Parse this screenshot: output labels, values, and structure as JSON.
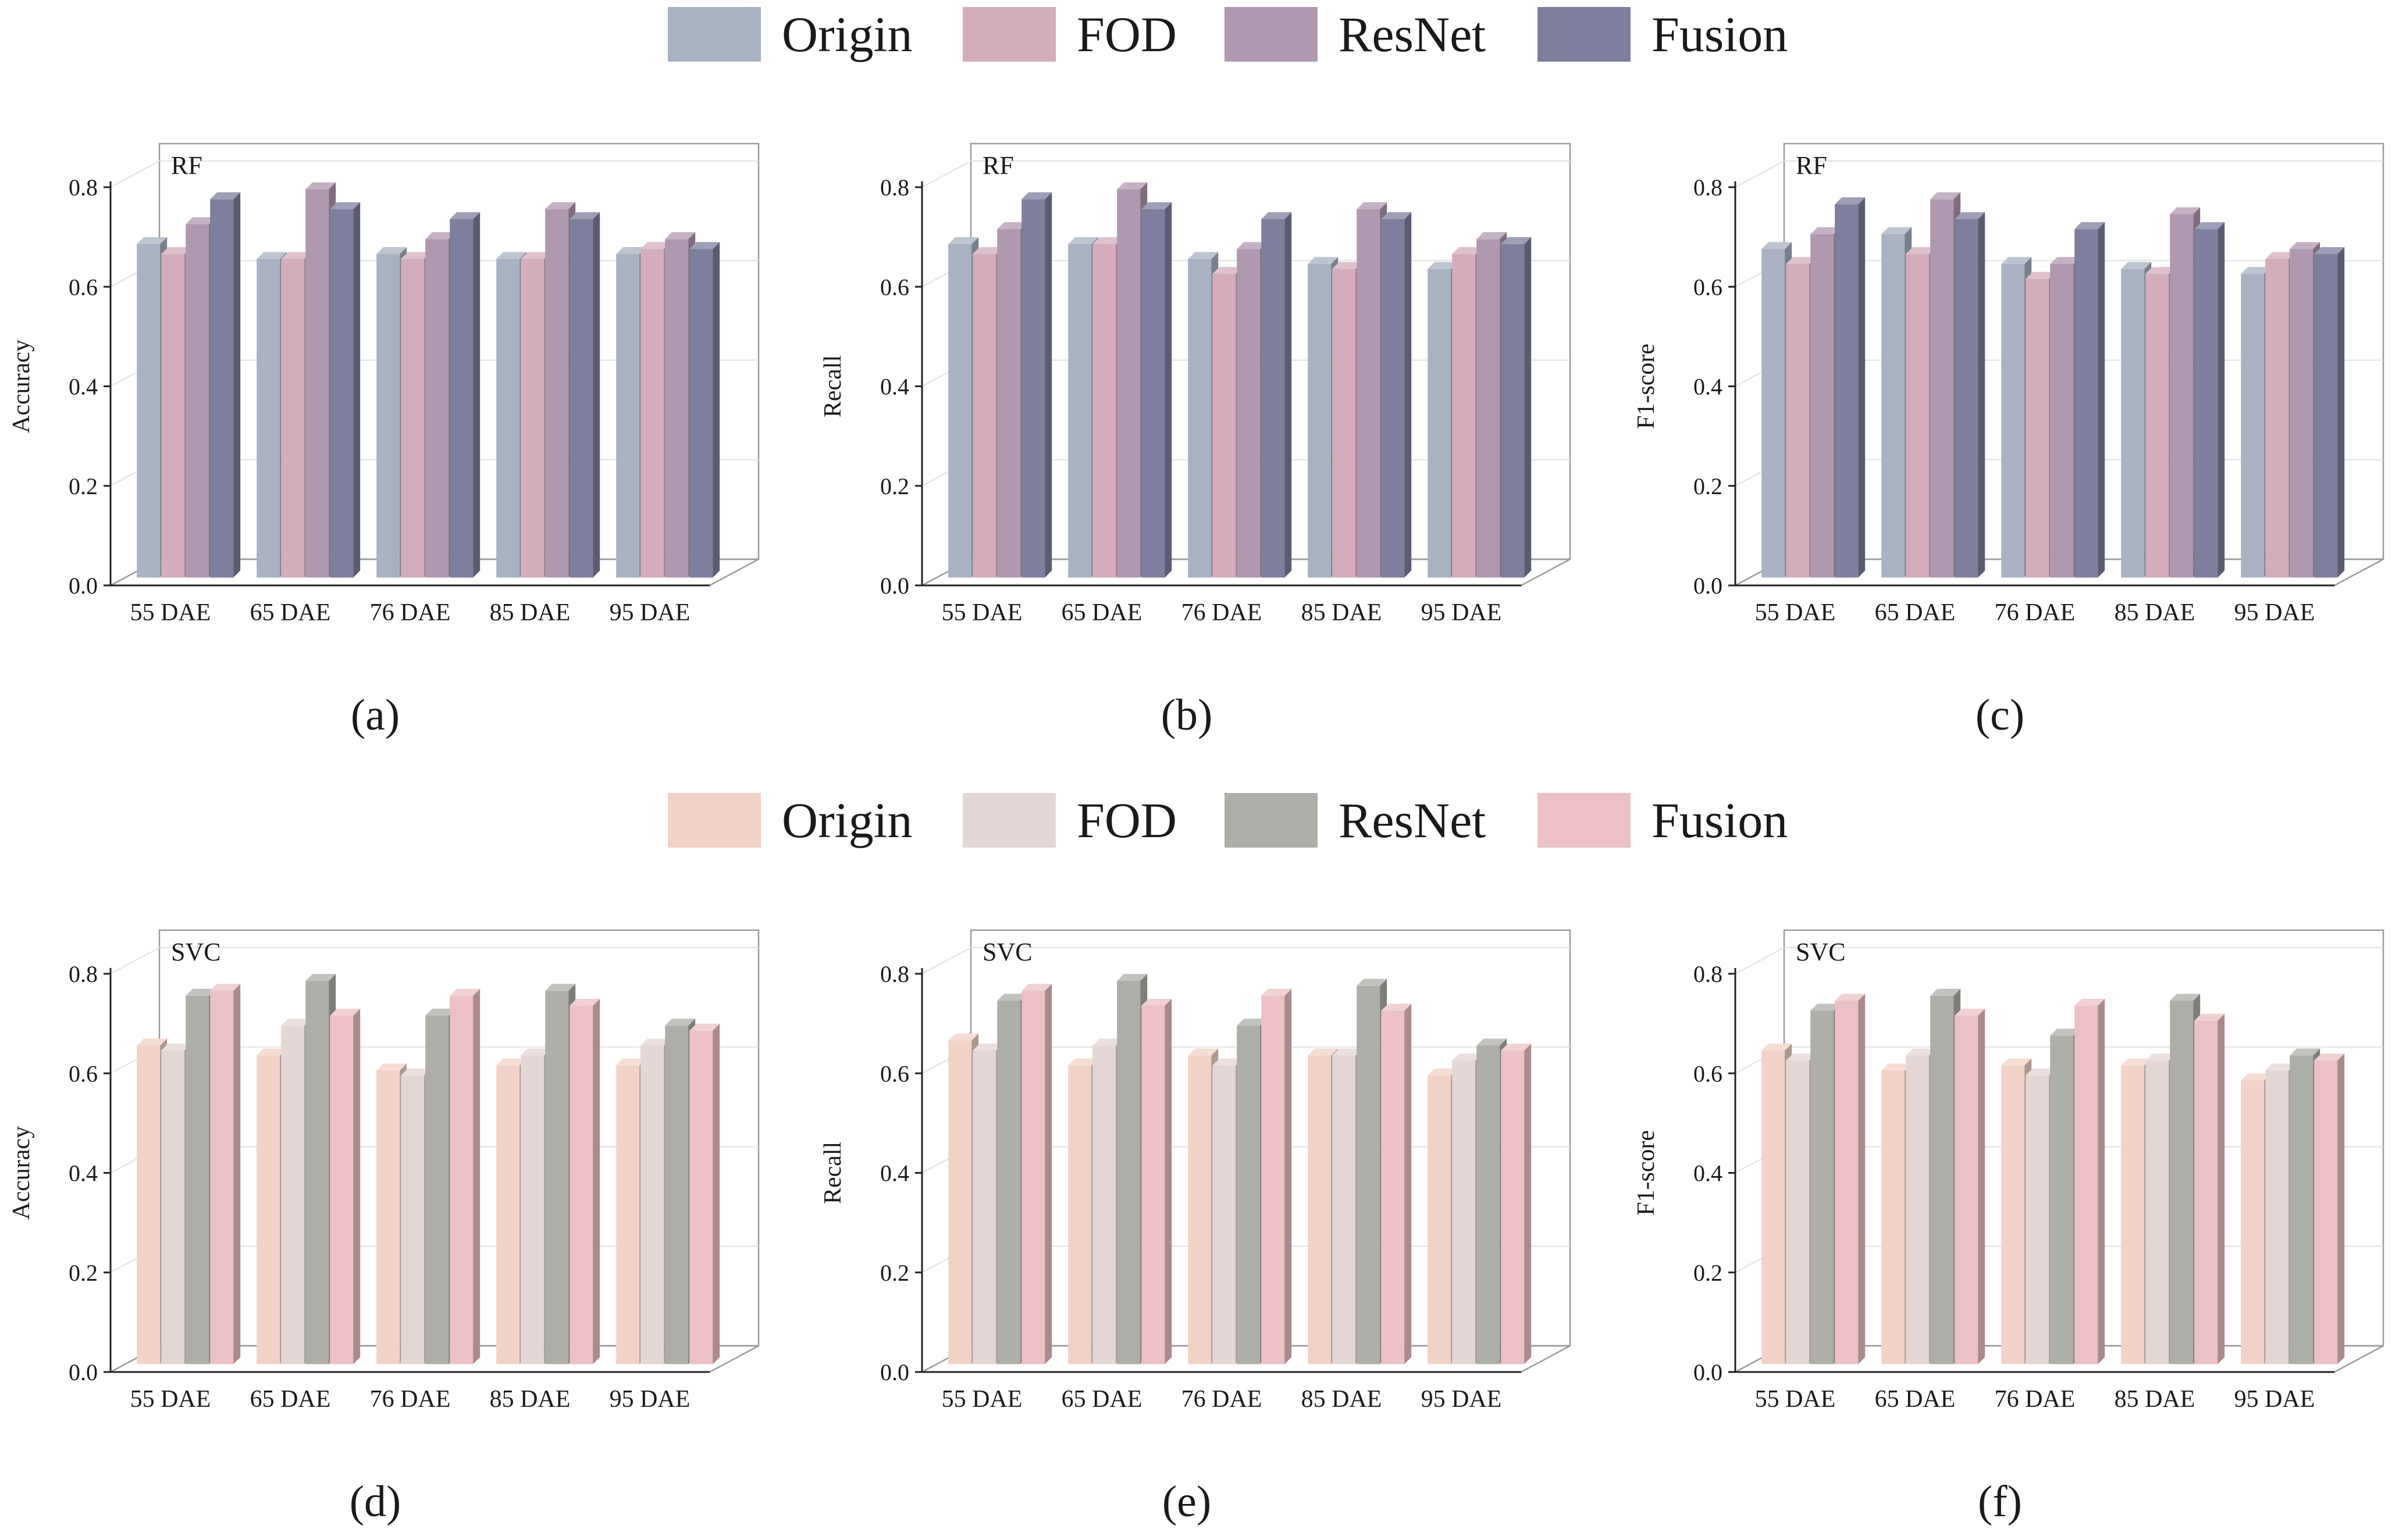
{
  "legends": [
    {
      "items": [
        {
          "label": "Origin",
          "color": "#a8b2c2"
        },
        {
          "label": "FOD",
          "color": "#d4acbc"
        },
        {
          "label": "ResNet",
          "color": "#b098b0"
        },
        {
          "label": "Fusion",
          "color": "#7e7e9e"
        }
      ]
    },
    {
      "items": [
        {
          "label": "Origin",
          "color": "#f2d2c6"
        },
        {
          "label": "FOD",
          "color": "#e4d6d4"
        },
        {
          "label": "ResNet",
          "color": "#aeaea8"
        },
        {
          "label": "Fusion",
          "color": "#ecc0c4"
        }
      ]
    }
  ],
  "chart_data": [
    {
      "type": "bar",
      "panel": "(a)",
      "model": "RF",
      "ylabel": "Accuracy",
      "ylim": [
        0,
        0.8
      ],
      "yticks": [
        "0.0",
        "0.2",
        "0.4",
        "0.6",
        "0.8"
      ],
      "categories": [
        "55 DAE",
        "65 DAE",
        "76 DAE",
        "85 DAE",
        "95 DAE"
      ],
      "series": [
        {
          "name": "Origin",
          "values": [
            0.67,
            0.64,
            0.65,
            0.64,
            0.65
          ]
        },
        {
          "name": "FOD",
          "values": [
            0.65,
            0.64,
            0.64,
            0.64,
            0.66
          ]
        },
        {
          "name": "ResNet",
          "values": [
            0.71,
            0.78,
            0.68,
            0.74,
            0.68
          ]
        },
        {
          "name": "Fusion",
          "values": [
            0.76,
            0.74,
            0.72,
            0.72,
            0.66
          ]
        }
      ]
    },
    {
      "type": "bar",
      "panel": "(b)",
      "model": "RF",
      "ylabel": "Recall",
      "ylim": [
        0,
        0.8
      ],
      "yticks": [
        "0.0",
        "0.2",
        "0.4",
        "0.6",
        "0.8"
      ],
      "categories": [
        "55 DAE",
        "65 DAE",
        "76 DAE",
        "85 DAE",
        "95 DAE"
      ],
      "series": [
        {
          "name": "Origin",
          "values": [
            0.67,
            0.67,
            0.64,
            0.63,
            0.62
          ]
        },
        {
          "name": "FOD",
          "values": [
            0.65,
            0.67,
            0.61,
            0.62,
            0.65
          ]
        },
        {
          "name": "ResNet",
          "values": [
            0.7,
            0.78,
            0.66,
            0.74,
            0.68
          ]
        },
        {
          "name": "Fusion",
          "values": [
            0.76,
            0.74,
            0.72,
            0.72,
            0.67
          ]
        }
      ]
    },
    {
      "type": "bar",
      "panel": "(c)",
      "model": "RF",
      "ylabel": "F1-score",
      "ylim": [
        0,
        0.8
      ],
      "yticks": [
        "0.0",
        "0.2",
        "0.4",
        "0.6",
        "0.8"
      ],
      "categories": [
        "55 DAE",
        "65 DAE",
        "76 DAE",
        "85 DAE",
        "95 DAE"
      ],
      "series": [
        {
          "name": "Origin",
          "values": [
            0.66,
            0.69,
            0.63,
            0.62,
            0.61
          ]
        },
        {
          "name": "FOD",
          "values": [
            0.63,
            0.65,
            0.6,
            0.61,
            0.64
          ]
        },
        {
          "name": "ResNet",
          "values": [
            0.69,
            0.76,
            0.63,
            0.73,
            0.66
          ]
        },
        {
          "name": "Fusion",
          "values": [
            0.75,
            0.72,
            0.7,
            0.7,
            0.65
          ]
        }
      ]
    },
    {
      "type": "bar",
      "panel": "(d)",
      "model": "SVC",
      "ylabel": "Accuracy",
      "ylim": [
        0,
        0.8
      ],
      "yticks": [
        "0.0",
        "0.2",
        "0.4",
        "0.6",
        "0.8"
      ],
      "categories": [
        "55 DAE",
        "65 DAE",
        "76 DAE",
        "85 DAE",
        "95 DAE"
      ],
      "series": [
        {
          "name": "Origin",
          "values": [
            0.64,
            0.62,
            0.59,
            0.6,
            0.6
          ]
        },
        {
          "name": "FOD",
          "values": [
            0.63,
            0.68,
            0.58,
            0.62,
            0.64
          ]
        },
        {
          "name": "ResNet",
          "values": [
            0.74,
            0.77,
            0.7,
            0.75,
            0.68
          ]
        },
        {
          "name": "Fusion",
          "values": [
            0.75,
            0.7,
            0.74,
            0.72,
            0.67
          ]
        }
      ]
    },
    {
      "type": "bar",
      "panel": "(e)",
      "model": "SVC",
      "ylabel": "Recall",
      "ylim": [
        0,
        0.8
      ],
      "yticks": [
        "0.0",
        "0.2",
        "0.4",
        "0.6",
        "0.8"
      ],
      "categories": [
        "55 DAE",
        "65 DAE",
        "76 DAE",
        "85 DAE",
        "95 DAE"
      ],
      "series": [
        {
          "name": "Origin",
          "values": [
            0.65,
            0.6,
            0.62,
            0.62,
            0.58
          ]
        },
        {
          "name": "FOD",
          "values": [
            0.63,
            0.64,
            0.6,
            0.62,
            0.61
          ]
        },
        {
          "name": "ResNet",
          "values": [
            0.73,
            0.77,
            0.68,
            0.76,
            0.64
          ]
        },
        {
          "name": "Fusion",
          "values": [
            0.75,
            0.72,
            0.74,
            0.71,
            0.63
          ]
        }
      ]
    },
    {
      "type": "bar",
      "panel": "(f)",
      "model": "SVC",
      "ylabel": "F1-score",
      "ylim": [
        0,
        0.8
      ],
      "yticks": [
        "0.0",
        "0.2",
        "0.4",
        "0.6",
        "0.8"
      ],
      "categories": [
        "55 DAE",
        "65 DAE",
        "76 DAE",
        "85 DAE",
        "95 DAE"
      ],
      "series": [
        {
          "name": "Origin",
          "values": [
            0.63,
            0.59,
            0.6,
            0.6,
            0.57
          ]
        },
        {
          "name": "FOD",
          "values": [
            0.61,
            0.62,
            0.58,
            0.61,
            0.59
          ]
        },
        {
          "name": "ResNet",
          "values": [
            0.71,
            0.74,
            0.66,
            0.73,
            0.62
          ]
        },
        {
          "name": "Fusion",
          "values": [
            0.73,
            0.7,
            0.72,
            0.69,
            0.61
          ]
        }
      ]
    }
  ]
}
